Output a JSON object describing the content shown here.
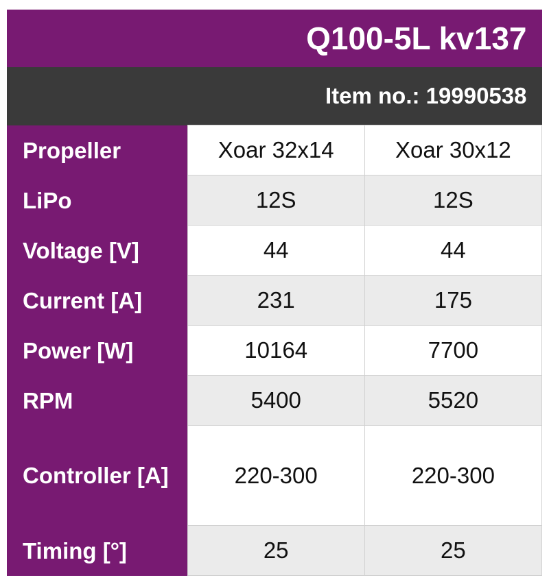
{
  "title": "Q100-5L kv137",
  "item_no": "Item no.: 19990538",
  "colors": {
    "accent": "#781a72",
    "subheader": "#3a3a3a",
    "alt_row": "#ebebeb"
  },
  "rows": [
    {
      "label": "Propeller",
      "values": [
        "Xoar 32x14",
        "Xoar 30x12"
      ]
    },
    {
      "label": "LiPo",
      "values": [
        "12S",
        "12S"
      ]
    },
    {
      "label": "Voltage [V]",
      "values": [
        "44",
        "44"
      ]
    },
    {
      "label": "Current [A]",
      "values": [
        "231",
        "175"
      ]
    },
    {
      "label": "Power [W]",
      "values": [
        "10164",
        "7700"
      ]
    },
    {
      "label": "RPM",
      "values": [
        "5400",
        "5520"
      ]
    },
    {
      "label": "Controller [A]",
      "values": [
        "220-300",
        "220-300"
      ]
    },
    {
      "label": "Timing [°]",
      "values": [
        "25",
        "25"
      ]
    }
  ]
}
